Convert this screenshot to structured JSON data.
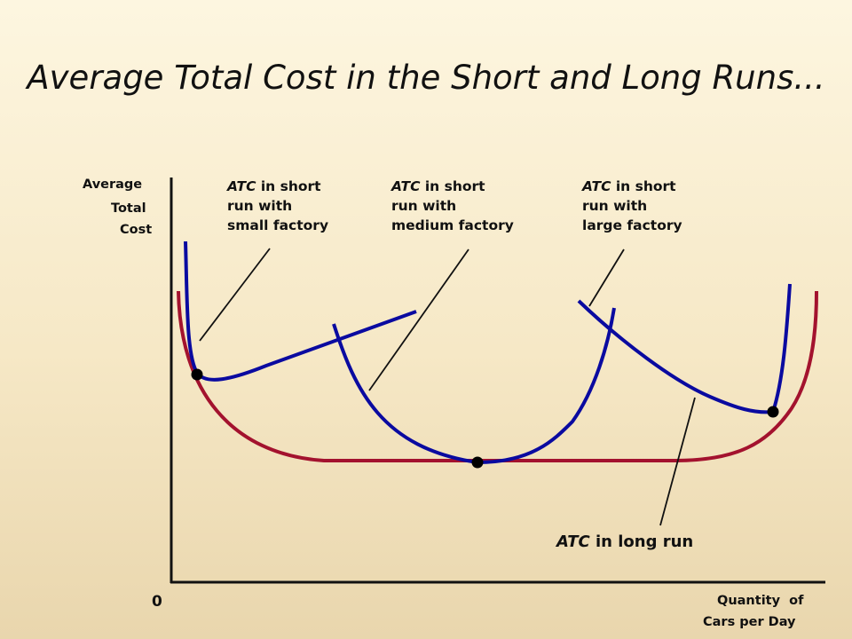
{
  "slide": {
    "title": "Average Total Cost in the Short and Long Runs..."
  },
  "y_axis_label": [
    "Average",
    "Total",
    "Cost"
  ],
  "x_axis_label": [
    "Quantity  of",
    "Cars per Day"
  ],
  "origin_label": "0",
  "annotations": {
    "small": {
      "atc": "ATC",
      "line1_rest": " in short",
      "line2": "run with",
      "line3": "small factory"
    },
    "medium": {
      "atc": "ATC",
      "line1_rest": " in short",
      "line2": "run with",
      "line3": "medium factory"
    },
    "large": {
      "atc": "ATC",
      "line1_rest": " in short",
      "line2": "run with",
      "line3": "large factory"
    },
    "long_run": {
      "atc": "ATC",
      "rest": " in long run"
    }
  },
  "colors": {
    "short_run_curve": "#0a0aa0",
    "long_run_curve": "#a3122e",
    "axes": "#111111"
  }
}
